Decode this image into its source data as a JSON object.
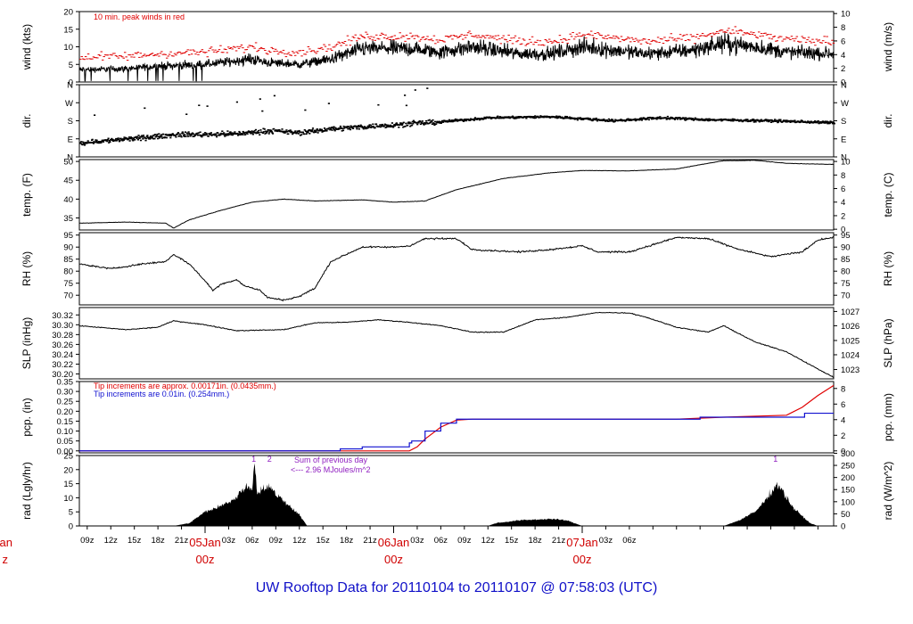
{
  "chart_data": {
    "type": "line",
    "title": "UW Rooftop Data for 20110104  to  20110107 @ 07:58:03  (UTC)",
    "colors": {
      "main": "#000000",
      "peak": "#e00000",
      "precip_red": "#e00000",
      "precip_blue": "#1010d0",
      "note_purple": "#9020c0",
      "date_red": "#d00000",
      "title_blue": "#1010c8"
    },
    "x_time_labels": [
      "09z",
      "12z",
      "15z",
      "18z",
      "21z",
      "03z",
      "06z",
      "09z",
      "12z",
      "15z",
      "18z",
      "21z",
      "03z",
      "06z",
      "09z",
      "12z",
      "15z",
      "18z",
      "21z",
      "03z",
      "06z"
    ],
    "x_date_labels": [
      {
        "date": "05Jan",
        "hour": "00z"
      },
      {
        "date": "06Jan",
        "hour": "00z"
      },
      {
        "date": "07Jan",
        "hour": "00z"
      }
    ],
    "left_clipped_label": {
      "date": "Jan",
      "hour": "z"
    },
    "time_range_hours": [
      -16,
      80
    ],
    "panels": [
      {
        "id": "wind",
        "ylabel_left": "wind (kts)",
        "ylabel_right": "wind (m/s)",
        "ylim": [
          0,
          20
        ],
        "left_ticks": [
          "0",
          "5",
          "10",
          "15",
          "20"
        ],
        "left_tick_values": [
          0,
          5,
          10,
          15,
          20
        ],
        "right_ticks": [
          "0",
          "2",
          "4",
          "6",
          "8",
          "10"
        ],
        "right_tick_values": [
          0,
          3.889,
          7.778,
          11.667,
          15.556,
          19.445
        ],
        "annotation": "10 min. peak winds in red",
        "series_keyframes": [
          [
            -16,
            3.5
          ],
          [
            -10,
            3.8
          ],
          [
            -6,
            4.5
          ],
          [
            0,
            5
          ],
          [
            6,
            6.5
          ],
          [
            8,
            5.5
          ],
          [
            12,
            5
          ],
          [
            16,
            6.5
          ],
          [
            20,
            9.5
          ],
          [
            26,
            9.5
          ],
          [
            30,
            8.5
          ],
          [
            34,
            10
          ],
          [
            40,
            8
          ],
          [
            44,
            8
          ],
          [
            48,
            10
          ],
          [
            52,
            9
          ],
          [
            56,
            8
          ],
          [
            62,
            9
          ],
          [
            66,
            11
          ],
          [
            70,
            10
          ],
          [
            74,
            8.5
          ],
          [
            80,
            8
          ]
        ],
        "peak_offset_kts": 3.5
      },
      {
        "id": "dir",
        "ylabel_left": "dir.",
        "ylabel_right": "dir.",
        "ylim": [
          0,
          360
        ],
        "left_ticks": [
          "N",
          "E",
          "S",
          "W",
          "N"
        ],
        "left_tick_values": [
          0,
          90,
          180,
          270,
          360
        ],
        "right_ticks": [
          "N",
          "E",
          "S",
          "W",
          "N"
        ],
        "right_tick_values": [
          0,
          90,
          180,
          270,
          360
        ],
        "series_keyframes": [
          [
            -16,
            70
          ],
          [
            -8,
            95
          ],
          [
            -4,
            110
          ],
          [
            4,
            115
          ],
          [
            8,
            130
          ],
          [
            12,
            120
          ],
          [
            16,
            140
          ],
          [
            22,
            155
          ],
          [
            30,
            175
          ],
          [
            36,
            195
          ],
          [
            44,
            200
          ],
          [
            52,
            180
          ],
          [
            58,
            195
          ],
          [
            64,
            185
          ],
          [
            72,
            180
          ],
          [
            80,
            170
          ]
        ]
      },
      {
        "id": "temp",
        "ylabel_left": "temp. (F)",
        "ylabel_right": "temp. (C)",
        "ylim": [
          31.8,
          50.5
        ],
        "left_ticks": [
          "35",
          "40",
          "45",
          "50"
        ],
        "left_tick_values": [
          35,
          40,
          45,
          50
        ],
        "right_ticks": [
          "0",
          "2",
          "4",
          "6",
          "8",
          "10"
        ],
        "right_tick_values": [
          32,
          35.6,
          39.2,
          42.8,
          46.4,
          50
        ],
        "series_keyframes": [
          [
            -16,
            33.6
          ],
          [
            -10,
            33.9
          ],
          [
            -5,
            33.6
          ],
          [
            -4,
            32.3
          ],
          [
            -2,
            34.5
          ],
          [
            2,
            37
          ],
          [
            6,
            39.2
          ],
          [
            10,
            40
          ],
          [
            14,
            39.5
          ],
          [
            20,
            39.8
          ],
          [
            24,
            39.2
          ],
          [
            28,
            39.5
          ],
          [
            32,
            42.5
          ],
          [
            38,
            45.5
          ],
          [
            44,
            47
          ],
          [
            48,
            47.6
          ],
          [
            54,
            47.5
          ],
          [
            60,
            48
          ],
          [
            64,
            49.5
          ],
          [
            66,
            50.2
          ],
          [
            70,
            50.3
          ],
          [
            74,
            49.5
          ],
          [
            80,
            49.2
          ]
        ]
      },
      {
        "id": "rh",
        "ylabel_left": "RH (%)",
        "ylabel_right": "RH (%)",
        "ylim": [
          66,
          96
        ],
        "left_ticks": [
          "70",
          "75",
          "80",
          "85",
          "90",
          "95"
        ],
        "left_tick_values": [
          70,
          75,
          80,
          85,
          90,
          95
        ],
        "right_ticks": [
          "70",
          "75",
          "80",
          "85",
          "90",
          "95"
        ],
        "right_tick_values": [
          70,
          75,
          80,
          85,
          90,
          95
        ],
        "series_keyframes": [
          [
            -16,
            83
          ],
          [
            -12,
            81
          ],
          [
            -8,
            83
          ],
          [
            -5,
            84
          ],
          [
            -4,
            87
          ],
          [
            -2,
            83
          ],
          [
            0,
            76
          ],
          [
            1,
            72
          ],
          [
            2,
            74.5
          ],
          [
            4,
            76.5
          ],
          [
            5,
            74
          ],
          [
            7,
            72
          ],
          [
            8,
            69
          ],
          [
            10,
            68
          ],
          [
            12,
            69.5
          ],
          [
            14,
            73
          ],
          [
            16,
            84
          ],
          [
            20,
            90
          ],
          [
            24,
            90
          ],
          [
            26,
            90.5
          ],
          [
            28,
            93.5
          ],
          [
            32,
            93.5
          ],
          [
            34,
            89
          ],
          [
            40,
            88
          ],
          [
            44,
            89
          ],
          [
            48,
            90.5
          ],
          [
            50,
            88
          ],
          [
            54,
            88
          ],
          [
            58,
            92
          ],
          [
            60,
            94
          ],
          [
            64,
            93.5
          ],
          [
            68,
            89
          ],
          [
            72,
            86
          ],
          [
            76,
            88
          ],
          [
            78,
            93
          ],
          [
            80,
            94
          ]
        ]
      },
      {
        "id": "slp",
        "ylabel_left": "SLP (inHg)",
        "ylabel_right": "SLP (hPa)",
        "ylim": [
          30.19,
          30.335
        ],
        "left_ticks": [
          "30.20",
          "30.22",
          "30.24",
          "30.26",
          "30.28",
          "30.30",
          "30.32"
        ],
        "left_tick_values": [
          30.2,
          30.22,
          30.24,
          30.26,
          30.28,
          30.3,
          30.32
        ],
        "right_ticks": [
          "1023",
          "1024",
          "1025",
          "1026",
          "1027"
        ],
        "right_tick_values": [
          30.209,
          30.239,
          30.268,
          30.298,
          30.327
        ],
        "series_keyframes": [
          [
            -16,
            30.298
          ],
          [
            -10,
            30.29
          ],
          [
            -6,
            30.295
          ],
          [
            -4,
            30.308
          ],
          [
            0,
            30.3
          ],
          [
            4,
            30.288
          ],
          [
            10,
            30.29
          ],
          [
            14,
            30.304
          ],
          [
            18,
            30.305
          ],
          [
            22,
            30.31
          ],
          [
            26,
            30.305
          ],
          [
            30,
            30.298
          ],
          [
            34,
            30.285
          ],
          [
            38,
            30.285
          ],
          [
            42,
            30.31
          ],
          [
            46,
            30.315
          ],
          [
            50,
            30.325
          ],
          [
            54,
            30.324
          ],
          [
            56,
            30.316
          ],
          [
            60,
            30.295
          ],
          [
            64,
            30.285
          ],
          [
            66,
            30.298
          ],
          [
            70,
            30.265
          ],
          [
            74,
            30.245
          ],
          [
            78,
            30.21
          ],
          [
            80,
            30.193
          ]
        ]
      },
      {
        "id": "pcp",
        "ylabel_left": "pcp. (in)",
        "ylabel_right": "pcp. (mm)",
        "ylim": [
          -0.01,
          0.35
        ],
        "left_ticks": [
          "0.00",
          "0.05",
          "0.10",
          "0.15",
          "0.20",
          "0.25",
          "0.30",
          "0.35"
        ],
        "left_tick_values": [
          0,
          0.05,
          0.1,
          0.15,
          0.2,
          0.25,
          0.3,
          0.35
        ],
        "right_ticks": [
          "0",
          "2",
          "4",
          "6",
          "8"
        ],
        "right_tick_values": [
          0,
          0.0787,
          0.1575,
          0.2362,
          0.315
        ],
        "annotation_red": "Tip increments are approx. 0.00171in. (0.0435mm.)",
        "annotation_blue": "Tip increments are 0.01in. (0.254mm.)",
        "series": [
          {
            "name": "red",
            "values": [
              [
                -16,
                0
              ],
              [
                26,
                0
              ],
              [
                27,
                0.02
              ],
              [
                28,
                0.06
              ],
              [
                30,
                0.12
              ],
              [
                32,
                0.155
              ],
              [
                34,
                0.16
              ],
              [
                60,
                0.16
              ],
              [
                66,
                0.17
              ],
              [
                74,
                0.18
              ],
              [
                76,
                0.22
              ],
              [
                78,
                0.28
              ],
              [
                80,
                0.33
              ]
            ]
          },
          {
            "name": "blue",
            "values": [
              [
                -16,
                0
              ],
              [
                17,
                0
              ],
              [
                17.2,
                0.01
              ],
              [
                20,
                0.02
              ],
              [
                26,
                0.04
              ],
              [
                26.3,
                0.05
              ],
              [
                28,
                0.1
              ],
              [
                30,
                0.14
              ],
              [
                32,
                0.16
              ],
              [
                60,
                0.16
              ],
              [
                63,
                0.17
              ],
              [
                76,
                0.17
              ],
              [
                76.3,
                0.19
              ],
              [
                80,
                0.19
              ]
            ]
          }
        ]
      },
      {
        "id": "rad",
        "ylabel_left": "rad (Lgly/hr)",
        "ylabel_right": "rad (W/m^2)",
        "ylim": [
          0,
          25
        ],
        "left_ticks": [
          "0",
          "5",
          "10",
          "15",
          "20",
          "25"
        ],
        "left_tick_values": [
          0,
          5,
          10,
          15,
          20,
          25
        ],
        "right_ticks": [
          "0",
          "50",
          "100",
          "150",
          "200",
          "250",
          "300"
        ],
        "right_tick_values": [
          0,
          4.3,
          8.6,
          12.9,
          17.2,
          21.5,
          25.8
        ],
        "annotation_line1": "Sum of previous day",
        "annotation_line2": "<--- 2.96 MJoules/m^2",
        "marker_labels": [
          "1",
          "2",
          "1"
        ],
        "series_keyframes": [
          [
            -16,
            0
          ],
          [
            -4,
            0
          ],
          [
            -2,
            1
          ],
          [
            0,
            5
          ],
          [
            2,
            7
          ],
          [
            4,
            10
          ],
          [
            5,
            14
          ],
          [
            6,
            13
          ],
          [
            6.3,
            24
          ],
          [
            6.6,
            12
          ],
          [
            8,
            14
          ],
          [
            10,
            9
          ],
          [
            12,
            4
          ],
          [
            13,
            0
          ],
          [
            36,
            0
          ],
          [
            37,
            1
          ],
          [
            40,
            2
          ],
          [
            44,
            2.5
          ],
          [
            46,
            2
          ],
          [
            48,
            0
          ],
          [
            66,
            0
          ],
          [
            68,
            2
          ],
          [
            70,
            5
          ],
          [
            71,
            8
          ],
          [
            72,
            12
          ],
          [
            73,
            15
          ],
          [
            74,
            10
          ],
          [
            75,
            6
          ],
          [
            77,
            1
          ],
          [
            78,
            0
          ],
          [
            80,
            0
          ]
        ]
      }
    ]
  }
}
